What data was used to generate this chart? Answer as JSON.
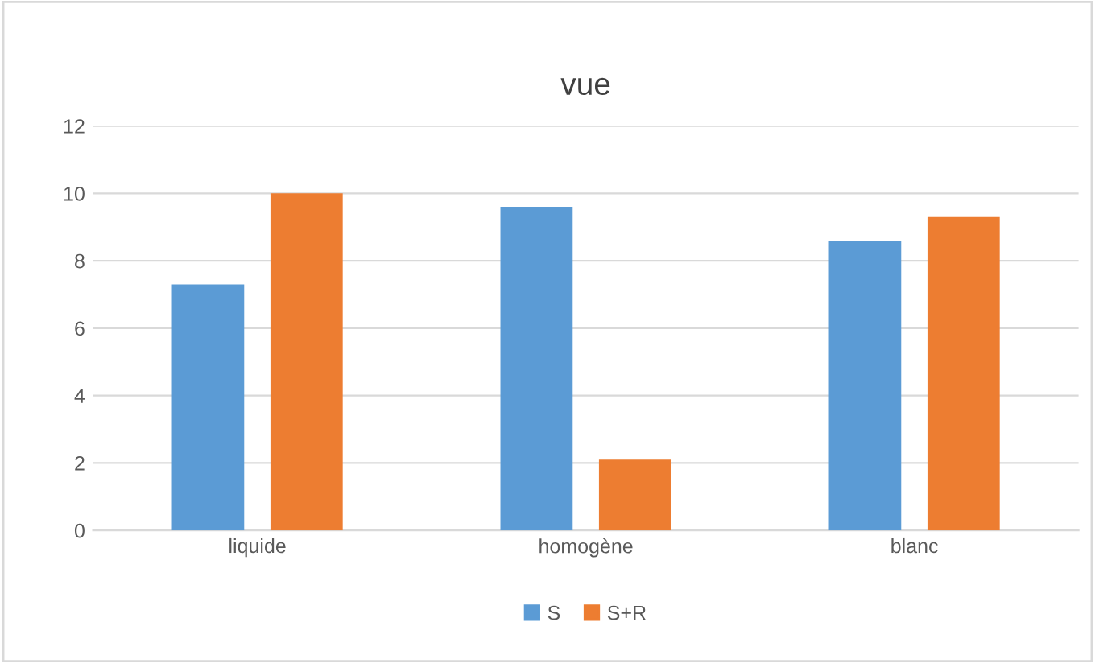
{
  "chart_data": {
    "type": "bar",
    "title": "vue",
    "categories": [
      "liquide",
      "homogène",
      "blanc"
    ],
    "series": [
      {
        "name": "S",
        "color": "#5b9bd5",
        "values": [
          7.3,
          9.6,
          8.6
        ]
      },
      {
        "name": "S+R",
        "color": "#ed7d31",
        "values": [
          10,
          2.1,
          9.3
        ]
      }
    ],
    "ylim": [
      0,
      12
    ],
    "yticks": [
      0,
      2,
      4,
      6,
      8,
      10,
      12
    ],
    "grid": "y",
    "legend": "bottom"
  }
}
